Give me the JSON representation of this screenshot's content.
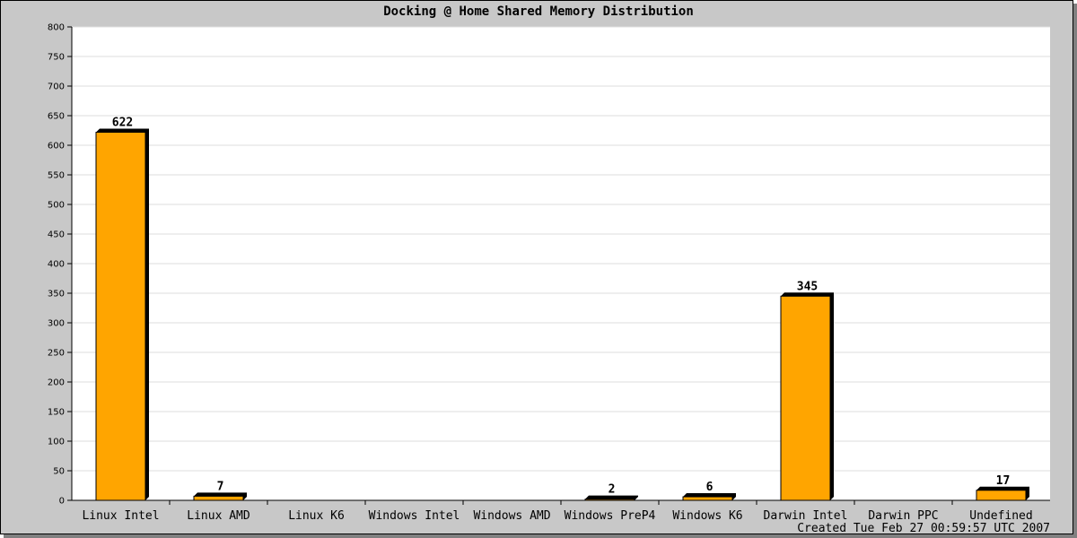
{
  "chart_data": {
    "type": "bar",
    "title": "Docking @ Home Shared Memory Distribution",
    "categories": [
      "Linux Intel",
      "Linux AMD",
      "Linux K6",
      "Windows Intel",
      "Windows AMD",
      "Windows PreP4",
      "Windows K6",
      "Darwin Intel",
      "Darwin PPC",
      "Undefined"
    ],
    "values": [
      622,
      7,
      0,
      0,
      0,
      2,
      6,
      345,
      0,
      17
    ],
    "data_labels": [
      "622",
      "7",
      "",
      "",
      "",
      "2",
      "6",
      "345",
      "",
      "17"
    ],
    "xlabel": "",
    "ylabel": "",
    "ylim": [
      0,
      800
    ],
    "yticks": [
      0,
      50,
      100,
      150,
      200,
      250,
      300,
      350,
      400,
      450,
      500,
      550,
      600,
      650,
      700,
      750,
      800
    ],
    "grid": true,
    "legend": "none",
    "bar_color": "#ffa500",
    "bar_shadow_color": "#000000",
    "background_color": "#c8c8c8",
    "plot_background_color": "#ffffff"
  },
  "footer": {
    "created": "Created Tue Feb 27 00:59:57 UTC 2007"
  }
}
